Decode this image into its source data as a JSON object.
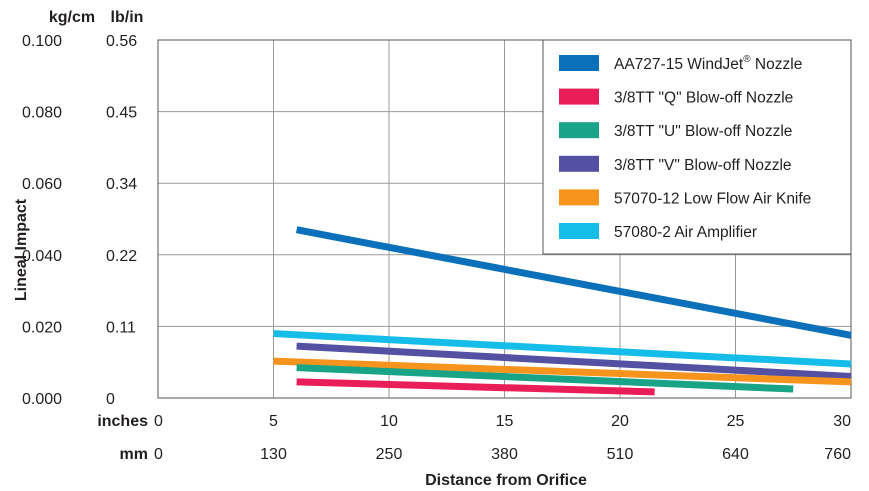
{
  "chart_data": {
    "type": "line",
    "title": "",
    "xlabel": "Distance from Orifice",
    "ylabel": "Lineal Impact",
    "x_unit_labels": {
      "inches": "inches",
      "mm": "mm"
    },
    "y_unit_labels": {
      "kg_cm": "kg/cm",
      "lb_in": "lb/in"
    },
    "xlim": [
      0,
      30
    ],
    "ylim_kg_cm": [
      0,
      0.1
    ],
    "x_ticks_inches": [
      "0",
      "5",
      "10",
      "15",
      "20",
      "25",
      "30"
    ],
    "x_ticks_mm": [
      "0",
      "130",
      "250",
      "380",
      "510",
      "640",
      "760"
    ],
    "y_ticks_kg_cm": [
      "0.000",
      "0.020",
      "0.040",
      "0.060",
      "0.080",
      "0.100"
    ],
    "y_ticks_lb_in": [
      "0",
      "0.11",
      "0.22",
      "0.34",
      "0.45",
      "0.56"
    ],
    "x_tick_values": [
      0,
      5,
      10,
      15,
      20,
      25,
      30
    ],
    "y_tick_values": [
      0,
      0.02,
      0.04,
      0.06,
      0.08,
      0.1
    ],
    "grid": true,
    "legend_position": "top-right",
    "legend_registered_mark": "®",
    "series": [
      {
        "name": "AA727-15 WindJet",
        "name_suffix": " Nozzle",
        "color": "#0a70b9",
        "x": [
          6,
          30
        ],
        "y": [
          0.047,
          0.0175
        ]
      },
      {
        "name": "3/8TT \"Q\" Blow-off Nozzle",
        "color": "#e91e58",
        "x": [
          6,
          21.5
        ],
        "y": [
          0.0045,
          0.0017
        ]
      },
      {
        "name": "3/8TT \"U\" Blow-off Nozzle",
        "color": "#1aa487",
        "x": [
          6,
          27.5
        ],
        "y": [
          0.0085,
          0.0025
        ]
      },
      {
        "name": "3/8TT \"V\" Blow-off Nozzle",
        "color": "#5451a2",
        "x": [
          6,
          30
        ],
        "y": [
          0.0145,
          0.006
        ]
      },
      {
        "name": "57070-12 Low Flow Air Knife",
        "color": "#f7941d",
        "x": [
          5,
          30
        ],
        "y": [
          0.0103,
          0.0045
        ]
      },
      {
        "name": "57080-2 Air Amplifier",
        "color": "#16bde9",
        "x": [
          5,
          30
        ],
        "y": [
          0.018,
          0.0095
        ]
      }
    ]
  }
}
